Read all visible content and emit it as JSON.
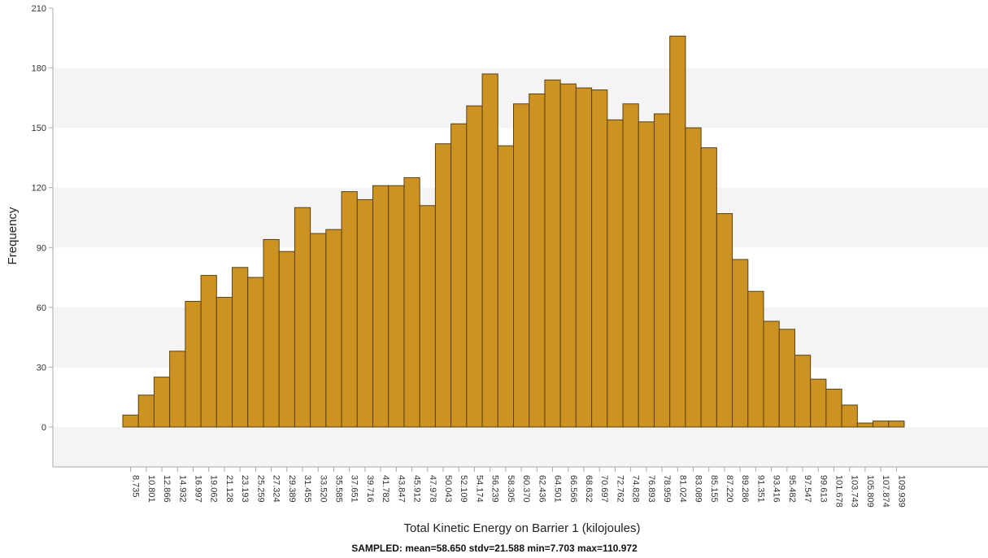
{
  "chart_data": {
    "type": "bar",
    "xlabel": "Total Kinetic Energy on Barrier 1 (kilojoules)",
    "ylabel": "Frequency",
    "caption": "SAMPLED: mean=58.650 stdv=21.588 min=7.703 max=110.972",
    "ylim": [
      -20,
      210
    ],
    "yticks": [
      0,
      30,
      60,
      90,
      120,
      150,
      180,
      210
    ],
    "bin_width": 2.0653,
    "categories": [
      "8.735",
      "10.801",
      "12.866",
      "14.932",
      "16.997",
      "19.062",
      "21.128",
      "23.193",
      "25.259",
      "27.324",
      "29.389",
      "31.455",
      "33.520",
      "35.585",
      "37.651",
      "39.716",
      "41.782",
      "43.847",
      "45.912",
      "47.978",
      "50.043",
      "52.109",
      "54.174",
      "56.239",
      "58.305",
      "60.370",
      "62.436",
      "64.501",
      "66.566",
      "68.632",
      "70.697",
      "72.762",
      "74.828",
      "76.893",
      "78.959",
      "81.024",
      "83.089",
      "85.155",
      "87.220",
      "89.286",
      "91.351",
      "93.416",
      "95.482",
      "97.547",
      "99.613",
      "101.678",
      "103.743",
      "105.809",
      "107.874",
      "109.939"
    ],
    "values": [
      6,
      16,
      25,
      38,
      63,
      76,
      65,
      80,
      75,
      94,
      88,
      110,
      97,
      99,
      118,
      114,
      121,
      121,
      125,
      111,
      142,
      152,
      161,
      177,
      141,
      162,
      167,
      174,
      172,
      170,
      169,
      154,
      162,
      153,
      157,
      196,
      150,
      140,
      107,
      84,
      68,
      53,
      49,
      36,
      24,
      19,
      11,
      2,
      3,
      3
    ],
    "grid": "horizontal bands",
    "colors": {
      "bar_fill": "#CC9322",
      "bar_edge": "#5A4010",
      "band": "#F4F4F4",
      "axis": "#AAAAAA"
    }
  }
}
